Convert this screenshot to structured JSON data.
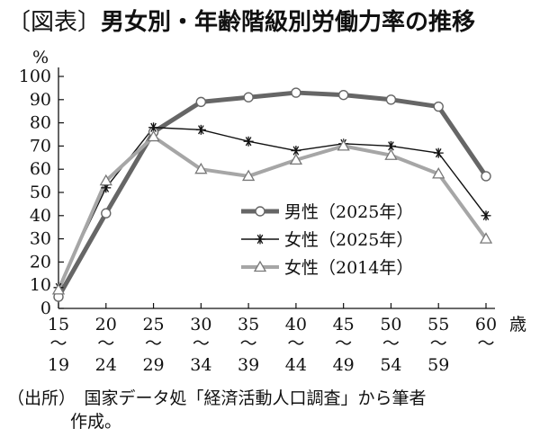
{
  "figure": {
    "bracket_open": "〔",
    "tag": "図表",
    "bracket_close": "〕",
    "title": "男女別・年齢階級別労働力率の推移"
  },
  "chart_data": {
    "type": "line",
    "ylabel": "%",
    "xlabel": "歳",
    "ylim": [
      0,
      100
    ],
    "yticks": [
      0,
      10,
      20,
      30,
      40,
      50,
      60,
      70,
      80,
      90,
      100
    ],
    "grid": false,
    "legend_position": "center-right",
    "categories": [
      {
        "start": "15",
        "sep": "〜",
        "end": "19"
      },
      {
        "start": "20",
        "sep": "〜",
        "end": "24"
      },
      {
        "start": "25",
        "sep": "〜",
        "end": "29"
      },
      {
        "start": "30",
        "sep": "〜",
        "end": "34"
      },
      {
        "start": "35",
        "sep": "〜",
        "end": "39"
      },
      {
        "start": "40",
        "sep": "〜",
        "end": "44"
      },
      {
        "start": "45",
        "sep": "〜",
        "end": "49"
      },
      {
        "start": "50",
        "sep": "〜",
        "end": "54"
      },
      {
        "start": "55",
        "sep": "〜",
        "end": "59"
      },
      {
        "start": "60",
        "sep": "〜",
        "end": ""
      }
    ],
    "series": [
      {
        "name": "男性（2025年）",
        "marker": "circle",
        "color": "#666666",
        "values": [
          5,
          41,
          76,
          89,
          91,
          93,
          92,
          90,
          87,
          57
        ]
      },
      {
        "name": "女性（2025年）",
        "marker": "asterisk",
        "color": "#111111",
        "values": [
          9,
          52,
          78,
          77,
          72,
          68,
          71,
          70,
          67,
          40
        ]
      },
      {
        "name": "女性（2014年）",
        "marker": "triangle",
        "color": "#a6a6a6",
        "values": [
          8,
          55,
          74,
          60,
          57,
          64,
          70,
          66,
          58,
          30
        ]
      }
    ]
  },
  "source": {
    "line1": "（出所）　国家データ処「経済活動人口調査」から筆者",
    "line2": "作成。"
  }
}
